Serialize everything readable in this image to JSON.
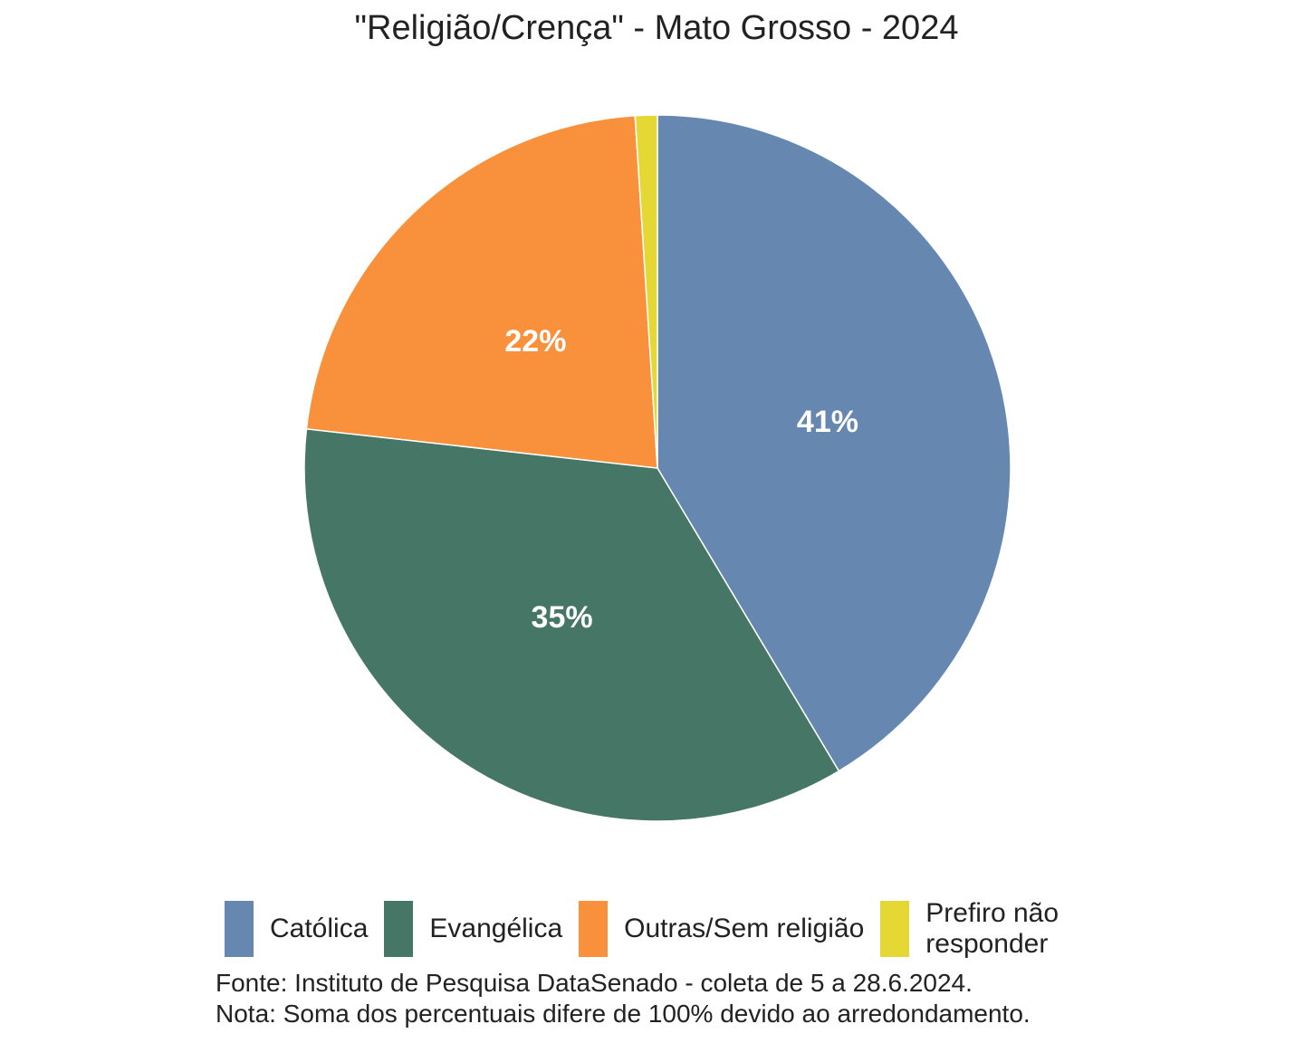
{
  "chart_data": {
    "type": "pie",
    "title": "\"Religião/Crença\" - Mato Grosso - 2024",
    "categories": [
      "Católica",
      "Evangélica",
      "Outras/Sem religião",
      "Prefiro não responder"
    ],
    "values": [
      41,
      35,
      22,
      1
    ],
    "labels": [
      "41%",
      "35%",
      "22%",
      ""
    ],
    "colors": [
      "#6688b0",
      "#467665",
      "#f9913c",
      "#e5d835"
    ],
    "start": "top",
    "direction": "clockwise",
    "legend_position": "bottom"
  },
  "source": "Fonte: Instituto de Pesquisa DataSenado - coleta de 5 a 28.6.2024.",
  "note": "Nota: Soma dos percentuais difere de 100% devido ao arredondamento."
}
